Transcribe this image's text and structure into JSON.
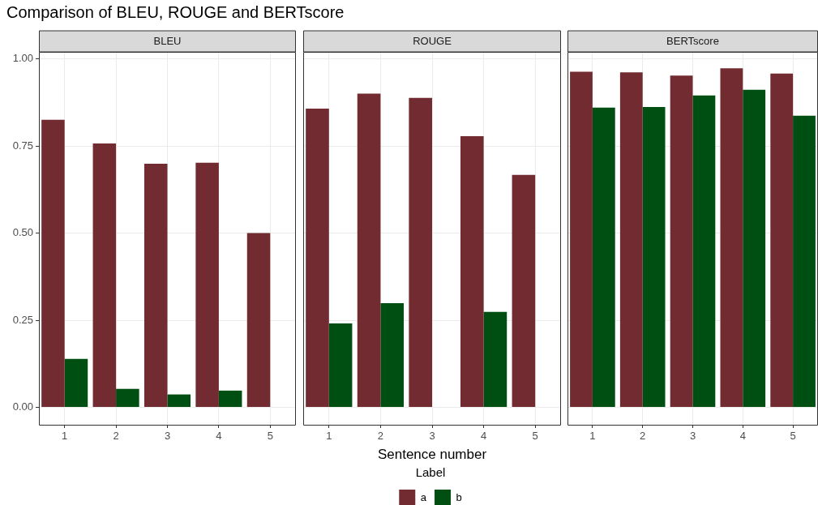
{
  "chart_data": [
    {
      "type": "bar",
      "title": "Comparison of BLEU, ROUGE and BERTscore",
      "subtitle": "BLEU",
      "categories": [
        "1",
        "2",
        "3",
        "4",
        "5"
      ],
      "series": [
        {
          "color": "#722b30",
          "values": [
            0.825,
            0.757,
            0.699,
            0.702,
            0.5
          ]
        },
        {
          "color": "#004f12",
          "values": [
            0.139,
            0.053,
            0.037,
            0.048,
            0
          ]
        }
      ],
      "ylim": [
        -0.05,
        1.02
      ],
      "yticks": [
        {
          "value": 0,
          "label": "0.00"
        },
        {
          "value": 0.25,
          "label": "0.25"
        },
        {
          "value": 0.5,
          "label": "0.50"
        },
        {
          "value": 0.75,
          "label": "0.75"
        },
        {
          "value": 1,
          "label": "1.00"
        }
      ],
      "grid": true
    },
    {
      "type": "bar",
      "subtitle": "ROUGE",
      "xlabel": "Sentence number",
      "legend": "bottom",
      "legend_title": "Label",
      "categories": [
        "1",
        "2",
        "3",
        "4",
        "5"
      ],
      "series": [
        {
          "name": "a",
          "color": "#722b30",
          "values": [
            0.857,
            0.9,
            0.888,
            0.778,
            0.667
          ]
        },
        {
          "name": "b",
          "color": "#004f12",
          "values": [
            0.241,
            0.299,
            0,
            0.274,
            0
          ]
        }
      ],
      "ylim": [
        -0.05,
        1.02
      ],
      "yticks": [
        {
          "value": 0,
          "label": null
        },
        {
          "value": 0.25,
          "label": null
        },
        {
          "value": 0.5,
          "label": null
        },
        {
          "value": 0.75,
          "label": null
        },
        {
          "value": 1,
          "label": null
        }
      ],
      "grid": true,
      "tick_labels": "x"
    },
    {
      "type": "bar",
      "subtitle": "BERTscore",
      "categories": [
        "1",
        "2",
        "3",
        "4",
        "5"
      ],
      "series": [
        {
          "color": "#722b30",
          "values": [
            0.963,
            0.961,
            0.952,
            0.973,
            0.958
          ]
        },
        {
          "color": "#004f12",
          "values": [
            0.86,
            0.862,
            0.895,
            0.911,
            0.837
          ]
        }
      ],
      "ylim": [
        -0.05,
        1.02
      ],
      "yticks": [
        {
          "value": 0,
          "label": null
        },
        {
          "value": 0.25,
          "label": null
        },
        {
          "value": 0.5,
          "label": null
        },
        {
          "value": 0.75,
          "label": null
        },
        {
          "value": 1,
          "label": null
        }
      ],
      "grid": true,
      "tick_labels": "x"
    }
  ]
}
